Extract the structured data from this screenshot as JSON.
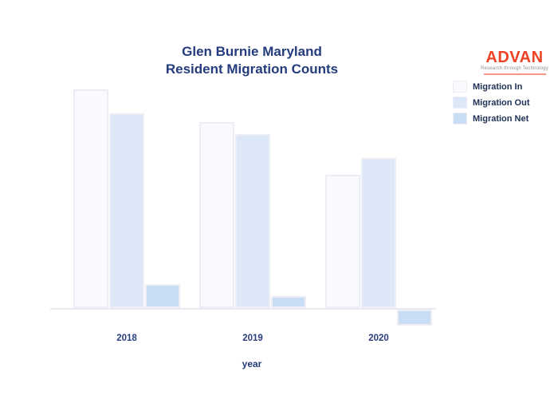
{
  "page": {
    "background": "#ffffff"
  },
  "header": {
    "title_line1": "Glen Burnie Maryland",
    "title_line2": "Resident Migration Counts"
  },
  "logo": {
    "name": "ADVAN",
    "tagline": "Research through Technology",
    "accent_color": "#ef4123"
  },
  "colors": {
    "title_text": "#243c7d",
    "tick_text": "#2a3f7e",
    "legend_text": "#1d3154",
    "axis_line": "#e9e9f1"
  },
  "chart_data": {
    "type": "bar",
    "title": "Glen Burnie Maryland Resident Migration Counts",
    "title_lines": [
      "Glen Burnie Maryland",
      "Resident Migration Counts"
    ],
    "categories": [
      "2018",
      "2019",
      "2020"
    ],
    "series": [
      {
        "name": "Migration In",
        "color": "#f8fafe",
        "values": [
          2700,
          2300,
          1650
        ]
      },
      {
        "name": "Migration Out",
        "color": "#dce8f8",
        "values": [
          2400,
          2150,
          1850
        ]
      },
      {
        "name": "Migration Net",
        "color": "#c9def4",
        "values": [
          300,
          150,
          -200
        ]
      }
    ],
    "xlabel": "year",
    "ylabel": "",
    "ylim": [
      -250,
      2800
    ],
    "y_axis_visible": false,
    "gridlines": false,
    "legend_position": "right",
    "note_values_estimated": true
  }
}
